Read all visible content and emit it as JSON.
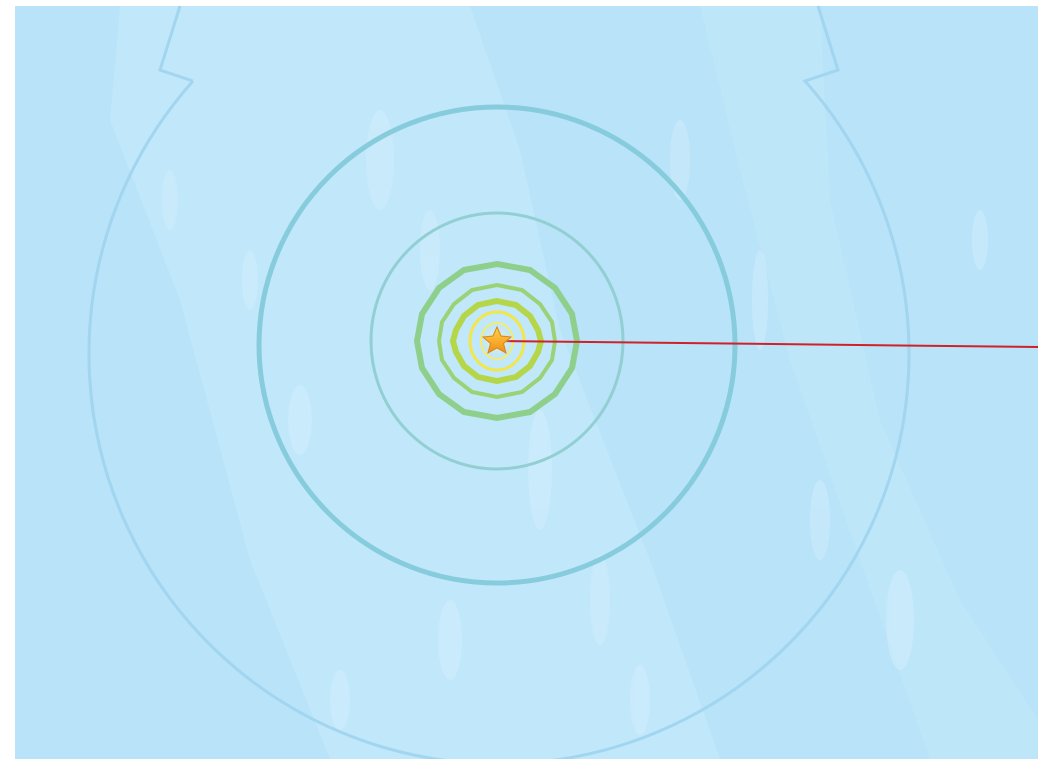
{
  "map": {
    "colors": {
      "ocean": "#b8e3f8",
      "seafloor_light": "#c9ebfb",
      "distant_contour": "#9fd3ee",
      "mid_contour": "#86ccdc",
      "near_contour": "#92cfd2",
      "green_contour": "#8fcf8c",
      "lime_contour": "#b6d64a",
      "yellow_contour": "#f2e64a",
      "epicenter_marker": "#f5a623",
      "pointer_line": "#d0202a"
    },
    "icons": {
      "epicenter": "star-icon"
    },
    "contour_count": 8
  }
}
